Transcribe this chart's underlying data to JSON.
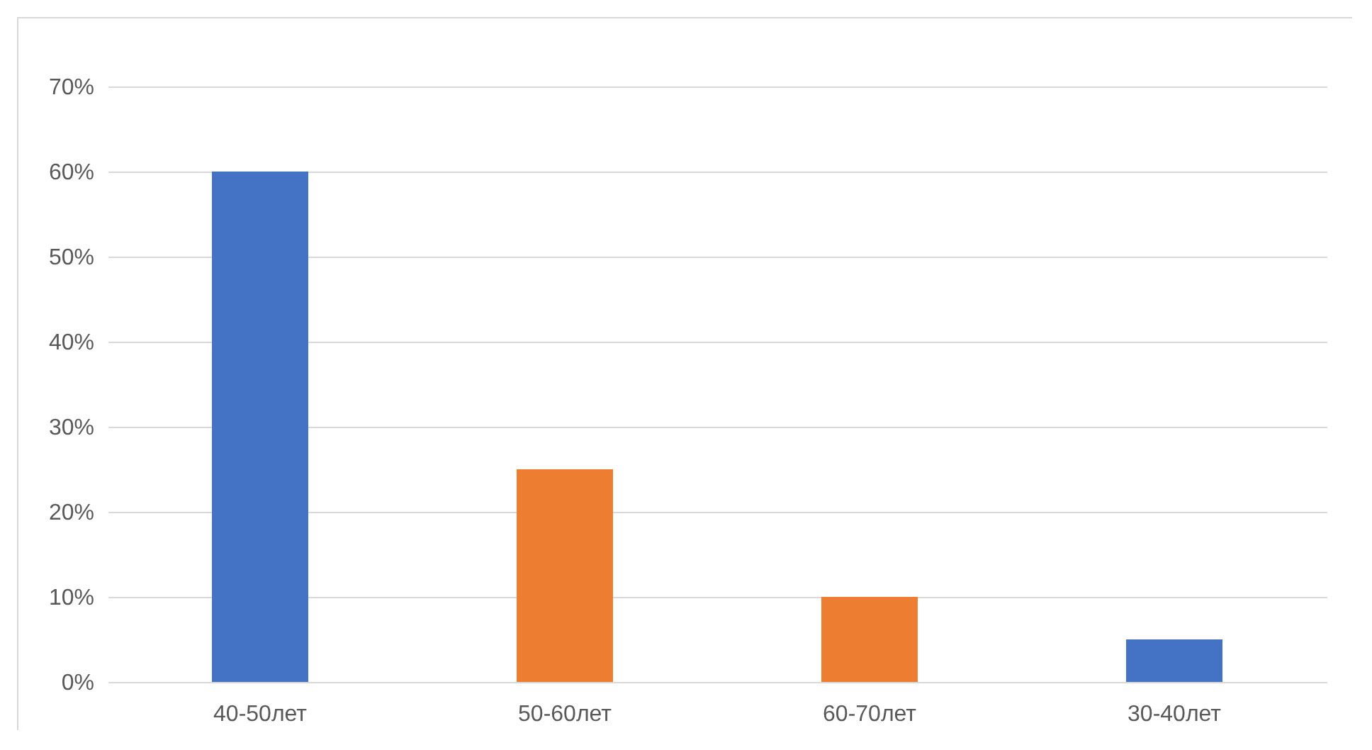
{
  "chart_data": {
    "type": "bar",
    "categories": [
      "40-50лет",
      "50-60лет",
      "60-70лет",
      "30-40лет"
    ],
    "values": [
      60,
      25,
      10,
      5
    ],
    "colors": [
      "#4472c4",
      "#ed7d31",
      "#ed7d31",
      "#4472c4"
    ],
    "ylim": [
      0,
      70
    ],
    "yticks": [
      {
        "value": 0,
        "label": "0%"
      },
      {
        "value": 10,
        "label": "10%"
      },
      {
        "value": 20,
        "label": "20%"
      },
      {
        "value": 30,
        "label": "30%"
      },
      {
        "value": 40,
        "label": "40%"
      },
      {
        "value": 50,
        "label": "50%"
      },
      {
        "value": 60,
        "label": "60%"
      },
      {
        "value": 70,
        "label": "70%"
      }
    ],
    "grid": "y"
  }
}
